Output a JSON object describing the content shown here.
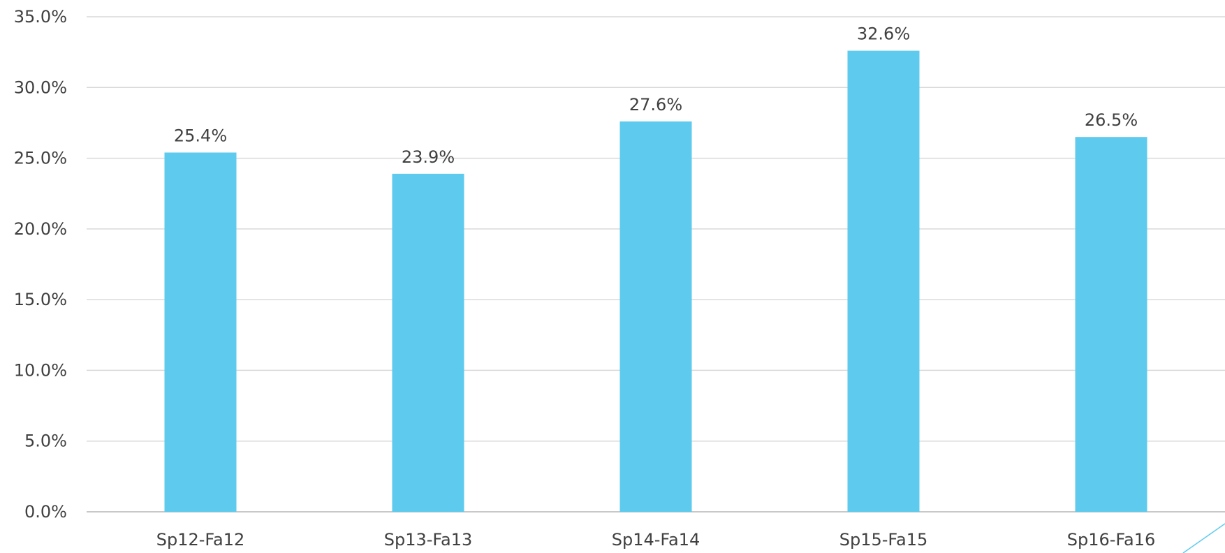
{
  "chart_data": {
    "type": "bar",
    "categories": [
      "Sp12-Fa12",
      "Sp13-Fa13",
      "Sp14-Fa14",
      "Sp15-Fa15",
      "Sp16-Fa16"
    ],
    "values": [
      25.4,
      23.9,
      27.6,
      32.6,
      26.5
    ],
    "data_labels": [
      "25.4%",
      "23.9%",
      "27.6%",
      "32.6%",
      "26.5%"
    ],
    "y_ticks": [
      "0.0%",
      "5.0%",
      "10.0%",
      "15.0%",
      "20.0%",
      "25.0%",
      "30.0%",
      "35.0%"
    ],
    "ylim": [
      0,
      35
    ],
    "title": "",
    "xlabel": "",
    "ylabel": "",
    "grid": true,
    "legend": "none",
    "bar_color": "#5ecbee",
    "corner_accent_color": "#5ecbee"
  }
}
